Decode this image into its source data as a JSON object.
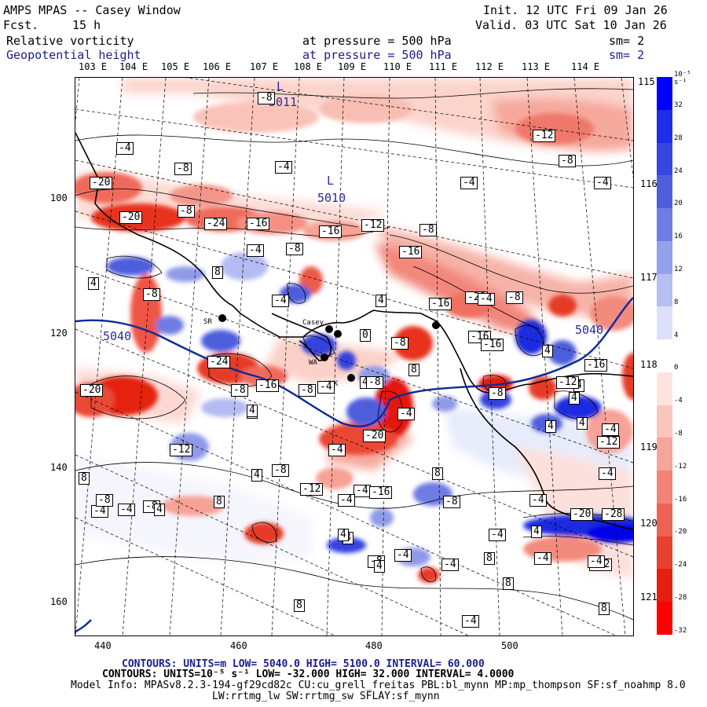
{
  "header": {
    "model": "AMPS MPAS -- Casey Window",
    "fcst_label": "Fcst.",
    "fcst_value": "15 h",
    "init": "Init. 12 UTC Fri 09 Jan 26",
    "valid": "Valid. 03 UTC Sat 10 Jan 26",
    "field1": {
      "name": "Relative vorticity",
      "level": "at pressure =  500 hPa",
      "smooth": "sm= 2"
    },
    "field2": {
      "name": "Geopotential height",
      "level": "at pressure =  500 hPa",
      "smooth": "sm= 2"
    }
  },
  "axes": {
    "top_lon": [
      "103 E",
      "104 E",
      "105 E",
      "106 E",
      "107 E",
      "108 E",
      "109 E",
      "110 E",
      "111 E",
      "112 E",
      "113 E",
      "114 E"
    ],
    "right_lat": [
      "115 E",
      "116 E",
      "117 E",
      "118 E",
      "119 E",
      "120 E",
      "121 E"
    ],
    "x_ticks": [
      "440",
      "460",
      "480",
      "500"
    ],
    "y_ticks": [
      "100",
      "120",
      "140",
      "160"
    ]
  },
  "colorbar": {
    "unit": "10⁻⁵ s⁻¹",
    "ticks": [
      "32",
      "28",
      "24",
      "20",
      "16",
      "12",
      "8",
      "4",
      "0",
      "-4",
      "-8",
      "-12",
      "-16",
      "-20",
      "-24",
      "-28",
      "-32"
    ],
    "colors": [
      "#0000ff",
      "#1c2ee8",
      "#3647e0",
      "#4e5edd",
      "#6e7de4",
      "#93a0ec",
      "#b6bef4",
      "#dde0fb",
      "#ffffff",
      "#fde4e0",
      "#f9c5bd",
      "#f5a59a",
      "#f18476",
      "#ec6353",
      "#e8412f",
      "#e5200f",
      "#ff0000"
    ]
  },
  "footer": {
    "line1": "CONTOURS:  UNITS=m  LOW=  5040.0         HIGH=  5100.0        INTERVAL=   60.000",
    "line2": "CONTOURS:  UNITS=10⁻⁵ s⁻¹  LOW=  -32.000        HIGH=  32.000       INTERVAL=   4.0000",
    "line3": "Model Info: MPASv8.2.3-194-gf29cd82c CU:cu_grell_freitas PBL:bl_mynn MP:mp_thompson SF:sf_noahmp 8.0",
    "line4": "LW:rrtmg_lw SW:rrtmg_sw SFLAY:sf_mynn"
  },
  "map": {
    "height_labels": [
      {
        "text": "L",
        "id": "l1"
      },
      {
        "text": "5011",
        "id": "h1"
      },
      {
        "text": "L",
        "id": "l2"
      },
      {
        "text": "5010",
        "id": "h2"
      },
      {
        "text": "5040",
        "id": "h3"
      },
      {
        "text": "5040",
        "id": "h4"
      }
    ],
    "vort_labels": [
      "-8",
      "-4",
      "-8",
      "-4",
      "-12",
      "-8",
      "-4",
      "-4",
      "-20",
      "-20",
      "-24",
      "-16",
      "-8",
      "-16",
      "-12",
      "-8",
      "-4",
      "-8",
      "-16",
      "-8",
      "4",
      "8",
      "-4",
      "-16",
      "-20",
      "4",
      "-8",
      "-4",
      "0",
      "-8",
      "-16",
      "-16",
      "4",
      "-8",
      "8",
      "-24",
      "-16",
      "-8",
      "4",
      "-8",
      "-20",
      "-8",
      "4",
      "-12",
      "4",
      "-20",
      "-4",
      "-8",
      "-4",
      "-16",
      "8",
      "-12",
      "4",
      "-4",
      "-4",
      "-4",
      "8",
      "-12",
      "-8",
      "-4",
      "-16",
      "4",
      "4",
      "-4",
      "-12",
      "-20",
      "-28",
      "4",
      "8",
      "-4",
      "-4",
      "8",
      "8",
      "-4",
      "-4",
      "4",
      "8",
      "8",
      "-4",
      "8",
      "4",
      "-4",
      "-8",
      "-8",
      "-4",
      "4",
      "-12",
      "-8",
      "-4",
      "4",
      "4",
      "-4"
    ],
    "stations": [
      "SR",
      "Casey",
      "WA",
      "YMK"
    ]
  }
}
